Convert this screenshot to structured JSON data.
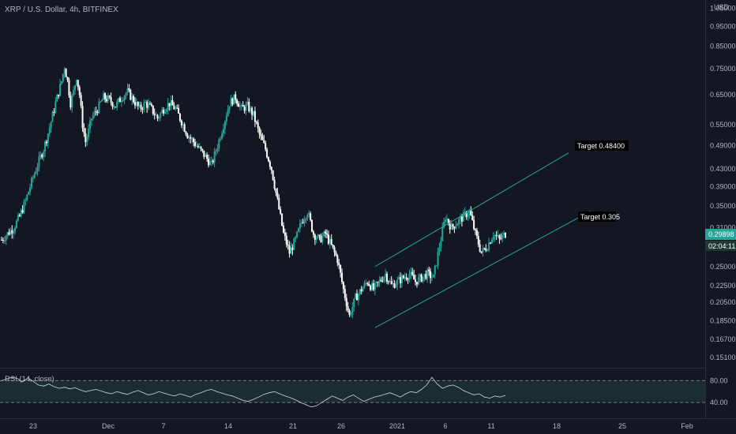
{
  "header": {
    "symbol_title": "XRP / U.S. Dollar, 4h, BITFINEX",
    "currency": "USD"
  },
  "price_panel": {
    "price_labels": [
      "1.05000",
      "0.95000",
      "0.85000",
      "0.75000",
      "0.65000",
      "0.55000",
      "0.49000",
      "0.43000",
      "0.39000",
      "0.35000",
      "0.31000",
      "0.25000",
      "0.22500",
      "0.20500",
      "0.18500",
      "0.16700",
      "0.15100"
    ],
    "current_price": "0.29898",
    "countdown": "02:04:11",
    "colors": {
      "bull": "#26a69a",
      "bear": "#ffffff",
      "channel": "#26a69a",
      "tag_bg": "#000000",
      "price_tag_bg": "#26a69a"
    }
  },
  "annotations": [
    {
      "label": "Target 0.48400"
    },
    {
      "label": "Target 0.305"
    }
  ],
  "rsi_panel": {
    "title": "RSI (14, close)",
    "levels": [
      "80.00",
      "40.00"
    ],
    "current": "52.84"
  },
  "time_axis": {
    "labels": [
      "23",
      "Dec",
      "7",
      "14",
      "21",
      "26",
      "2021",
      "6",
      "11",
      "18",
      "25",
      "Feb"
    ]
  },
  "chart_data": {
    "type": "candlestick",
    "title": "XRP / U.S. Dollar, 4h, BITFINEX",
    "y_scale": "log",
    "ylim": [
      0.145,
      1.08
    ],
    "x_labels": [
      "23",
      "Dec",
      "7",
      "14",
      "21",
      "26",
      "2021",
      "6",
      "11",
      "18",
      "25",
      "Feb"
    ],
    "price_path": [
      [
        0,
        0.29
      ],
      [
        2,
        0.3
      ],
      [
        4,
        0.31
      ],
      [
        6,
        0.33
      ],
      [
        8,
        0.36
      ],
      [
        10,
        0.4
      ],
      [
        12,
        0.44
      ],
      [
        14,
        0.48
      ],
      [
        16,
        0.54
      ],
      [
        18,
        0.62
      ],
      [
        20,
        0.7
      ],
      [
        21,
        0.76
      ],
      [
        22,
        0.7
      ],
      [
        23,
        0.62
      ],
      [
        24,
        0.66
      ],
      [
        25,
        0.72
      ],
      [
        26,
        0.65
      ],
      [
        27,
        0.55
      ],
      [
        28,
        0.5
      ],
      [
        29,
        0.53
      ],
      [
        30,
        0.57
      ],
      [
        32,
        0.6
      ],
      [
        34,
        0.64
      ],
      [
        36,
        0.63
      ],
      [
        38,
        0.61
      ],
      [
        40,
        0.64
      ],
      [
        42,
        0.66
      ],
      [
        44,
        0.63
      ],
      [
        46,
        0.6
      ],
      [
        48,
        0.62
      ],
      [
        50,
        0.6
      ],
      [
        52,
        0.57
      ],
      [
        54,
        0.6
      ],
      [
        56,
        0.62
      ],
      [
        58,
        0.6
      ],
      [
        60,
        0.56
      ],
      [
        62,
        0.52
      ],
      [
        64,
        0.5
      ],
      [
        66,
        0.48
      ],
      [
        68,
        0.46
      ],
      [
        70,
        0.44
      ],
      [
        72,
        0.49
      ],
      [
        74,
        0.55
      ],
      [
        76,
        0.62
      ],
      [
        78,
        0.64
      ],
      [
        80,
        0.6
      ],
      [
        82,
        0.61
      ],
      [
        84,
        0.58
      ],
      [
        86,
        0.52
      ],
      [
        88,
        0.48
      ],
      [
        90,
        0.43
      ],
      [
        92,
        0.36
      ],
      [
        94,
        0.3
      ],
      [
        96,
        0.27
      ],
      [
        98,
        0.29
      ],
      [
        100,
        0.32
      ],
      [
        102,
        0.34
      ],
      [
        104,
        0.3
      ],
      [
        106,
        0.29
      ],
      [
        108,
        0.3
      ],
      [
        110,
        0.28
      ],
      [
        112,
        0.26
      ],
      [
        114,
        0.22
      ],
      [
        116,
        0.19
      ],
      [
        118,
        0.21
      ],
      [
        120,
        0.22
      ],
      [
        122,
        0.23
      ],
      [
        124,
        0.22
      ],
      [
        126,
        0.23
      ],
      [
        128,
        0.24
      ],
      [
        130,
        0.225
      ],
      [
        132,
        0.23
      ],
      [
        134,
        0.235
      ],
      [
        136,
        0.24
      ],
      [
        138,
        0.23
      ],
      [
        140,
        0.235
      ],
      [
        142,
        0.24
      ],
      [
        144,
        0.235
      ],
      [
        146,
        0.28
      ],
      [
        148,
        0.33
      ],
      [
        150,
        0.31
      ],
      [
        152,
        0.32
      ],
      [
        154,
        0.33
      ],
      [
        156,
        0.34
      ],
      [
        158,
        0.3
      ],
      [
        160,
        0.27
      ],
      [
        162,
        0.28
      ],
      [
        164,
        0.3
      ],
      [
        166,
        0.29
      ],
      [
        168,
        0.3
      ]
    ],
    "channel_lines": [
      {
        "from": [
          "26",
          0.25
        ],
        "to": [
          "18",
          0.47
        ]
      },
      {
        "from": [
          "26",
          0.178
        ],
        "to": [
          "18",
          0.34
        ]
      }
    ],
    "rsi": {
      "levels": [
        80,
        40
      ],
      "values": [
        80,
        83,
        86,
        84,
        78,
        85,
        79,
        72,
        70,
        74,
        69,
        66,
        68,
        65,
        67,
        63,
        60,
        62,
        64,
        61,
        58,
        56,
        60,
        57,
        55,
        59,
        62,
        58,
        54,
        56,
        60,
        57,
        54,
        52,
        56,
        53,
        50,
        55,
        58,
        62,
        64,
        60,
        57,
        54,
        52,
        48,
        44,
        42,
        46,
        50,
        55,
        58,
        60,
        56,
        52,
        49,
        45,
        40,
        36,
        32,
        34,
        40,
        46,
        52,
        48,
        44,
        50,
        54,
        48,
        42,
        46,
        50,
        52,
        55,
        58,
        54,
        50,
        56,
        60,
        58,
        64,
        72,
        86,
        74,
        66,
        70,
        72,
        68,
        62,
        58,
        54,
        56,
        50,
        48,
        52,
        50,
        53
      ]
    }
  }
}
